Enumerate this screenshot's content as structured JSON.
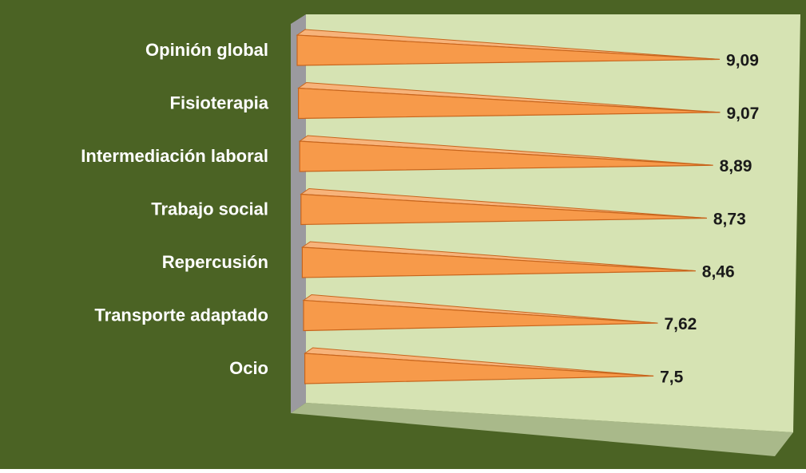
{
  "colors": {
    "background": "#4b6324",
    "plot_wall": "#d6e3b3",
    "plot_floor": "#a9b98a",
    "side_wall": "#9b9a9f",
    "bar_fill": "#f79a4a",
    "bar_top": "#f7b37a",
    "bar_edge": "#c8651c",
    "label_text": "#ffffff",
    "value_text": "#1a1a1a"
  },
  "chart_data": {
    "type": "bar",
    "orientation": "horizontal",
    "style": "3d-pyramid",
    "categories": [
      "Opinión global",
      "Fisioterapia",
      "Intermediación laboral",
      "Trabajo social",
      "Repercusión",
      "Transporte adaptado",
      "Ocio"
    ],
    "values": [
      9.09,
      9.07,
      8.89,
      8.73,
      8.46,
      7.62,
      7.5
    ],
    "value_labels": [
      "9,09",
      "9,07",
      "8,89",
      "8,73",
      "8,46",
      "7,62",
      "7,5"
    ],
    "xlim": [
      0,
      10
    ],
    "grid": false,
    "legend": "none"
  }
}
